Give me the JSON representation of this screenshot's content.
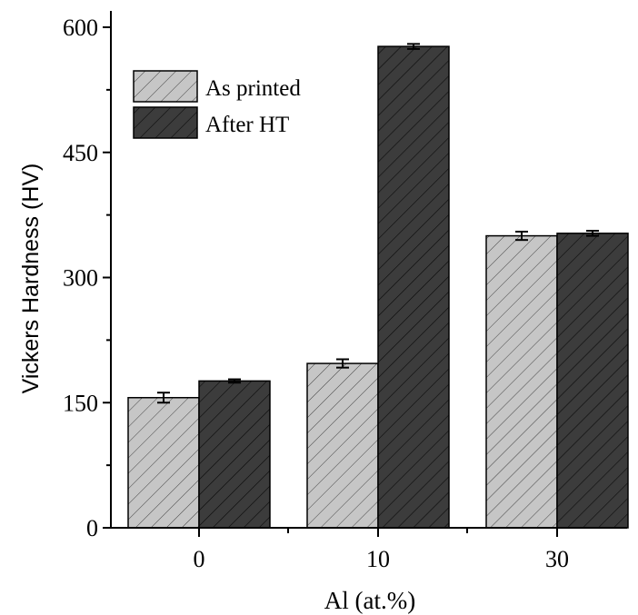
{
  "chart_data": {
    "type": "bar",
    "xlabel": "Al (at.%)",
    "ylabel": "Vickers Hardness (HV)",
    "categories": [
      "0",
      "10",
      "30"
    ],
    "ylim": [
      0,
      620
    ],
    "yticks": [
      0,
      150,
      300,
      450,
      600
    ],
    "grid": false,
    "legend_position": "top-left",
    "series": [
      {
        "name": "As printed",
        "values": [
          156,
          197,
          350
        ],
        "errors": [
          6,
          5,
          5
        ],
        "color": "#c6c6c6",
        "hatch": "light"
      },
      {
        "name": "After HT",
        "values": [
          176,
          577,
          353
        ],
        "errors": [
          2,
          3,
          3
        ],
        "color": "#3c3c3c",
        "hatch": "dark"
      }
    ]
  }
}
